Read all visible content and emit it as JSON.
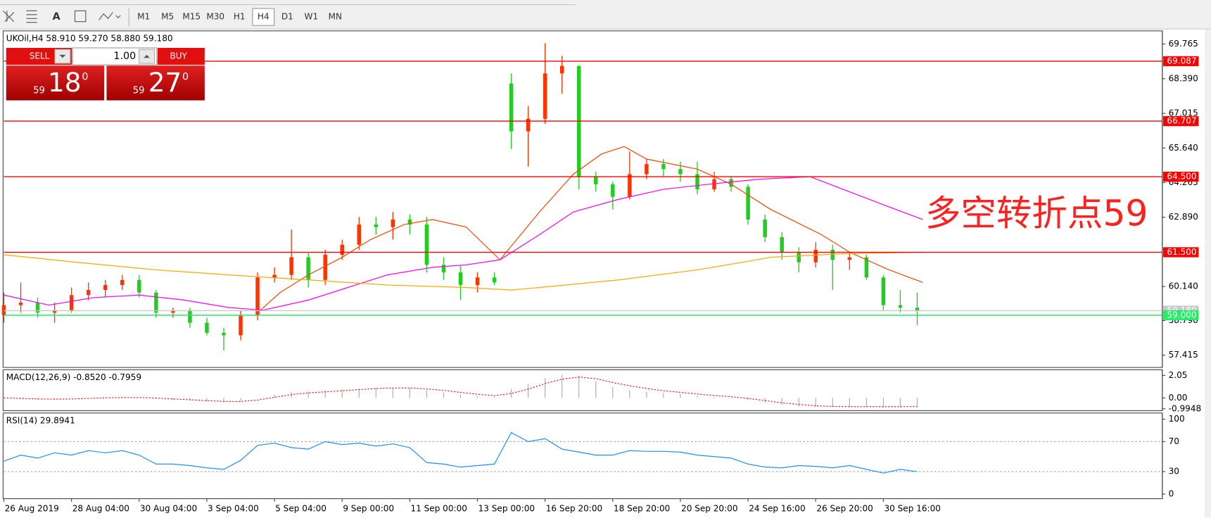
{
  "toolbar": {
    "text_tool": "A",
    "timeframes": [
      "M1",
      "M5",
      "M15",
      "M30",
      "H1",
      "H4",
      "D1",
      "W1",
      "MN"
    ],
    "active_timeframe": 5
  },
  "trade_panel": {
    "sell_label": "SELL",
    "buy_label": "BUY",
    "volume": "1.00",
    "sell": {
      "big": "59",
      "main": "18",
      "sup": "0"
    },
    "buy": {
      "big": "59",
      "main": "27",
      "sup": "0"
    }
  },
  "chart_data": [
    {
      "type": "candlestick",
      "title": "UKOil,H4  58.910 59.270 58.880 59.180",
      "x": [
        0,
        3,
        6,
        9,
        12,
        15,
        18,
        21,
        24,
        27,
        30,
        33,
        36,
        39,
        42,
        45,
        48,
        51,
        54,
        57,
        60,
        63,
        66,
        69,
        72,
        75,
        78,
        81,
        84,
        87,
        90,
        93,
        96,
        99,
        102,
        105,
        108,
        111,
        114,
        117,
        120,
        123,
        126,
        129,
        132,
        135,
        138,
        141,
        144,
        147,
        150,
        153,
        156,
        159,
        162
      ],
      "open": [
        59.0,
        59.4,
        59.5,
        59.1,
        59.2,
        59.8,
        60.0,
        60.2,
        60.4,
        59.9,
        59.1,
        59.2,
        58.7,
        58.3,
        58.2,
        59.0,
        60.5,
        60.6,
        61.3,
        60.4,
        61.4,
        61.8,
        62.6,
        62.5,
        62.8,
        62.6,
        61.0,
        60.7,
        60.2,
        60.5,
        68.2,
        66.3,
        66.8,
        68.6,
        68.9,
        64.5,
        64.2,
        63.7,
        64.6,
        65.0,
        64.8,
        64.6,
        64.0,
        64.4,
        64.1,
        62.8,
        62.1,
        61.5,
        61.1,
        61.6,
        61.2,
        61.3,
        60.5,
        59.4,
        59.3
      ],
      "high": [
        59.9,
        60.3,
        59.7,
        59.5,
        60.1,
        60.3,
        60.4,
        60.6,
        60.6,
        60.0,
        59.3,
        59.3,
        58.9,
        58.5,
        59.2,
        60.7,
        60.9,
        62.4,
        61.5,
        61.6,
        62.0,
        62.9,
        62.9,
        63.1,
        63.0,
        62.9,
        61.3,
        61.0,
        60.7,
        60.7,
        68.6,
        67.3,
        69.8,
        69.3,
        68.9,
        64.7,
        64.3,
        65.5,
        65.2,
        65.2,
        65.1,
        65.1,
        64.7,
        64.5,
        64.2,
        63.0,
        62.3,
        61.7,
        61.9,
        61.8,
        61.5,
        61.4,
        60.6,
        60.0,
        59.9
      ],
      "low": [
        58.7,
        59.1,
        58.9,
        58.7,
        59.1,
        59.6,
        59.7,
        60.0,
        59.7,
        58.9,
        58.9,
        58.5,
        58.2,
        57.6,
        58.0,
        58.8,
        60.3,
        60.4,
        60.1,
        60.2,
        61.2,
        61.6,
        62.2,
        62.0,
        62.2,
        60.7,
        60.4,
        59.6,
        59.9,
        60.2,
        65.6,
        64.9,
        66.6,
        67.8,
        64.0,
        63.9,
        63.2,
        63.6,
        64.4,
        64.5,
        64.3,
        63.8,
        63.9,
        63.9,
        62.6,
        61.9,
        61.2,
        60.7,
        60.9,
        60.0,
        60.8,
        60.4,
        59.2,
        59.1,
        58.6
      ],
      "close": [
        59.4,
        59.5,
        59.1,
        59.2,
        59.8,
        60.0,
        60.2,
        60.4,
        59.9,
        59.1,
        59.2,
        58.7,
        58.3,
        58.2,
        59.0,
        60.5,
        60.6,
        61.3,
        60.4,
        61.4,
        61.8,
        62.6,
        62.5,
        62.8,
        62.6,
        61.0,
        60.7,
        60.2,
        60.5,
        60.3,
        66.3,
        66.8,
        68.6,
        68.9,
        64.5,
        64.2,
        63.7,
        64.6,
        65.0,
        64.8,
        64.6,
        64.0,
        64.4,
        64.1,
        62.8,
        62.1,
        61.5,
        61.1,
        61.6,
        61.2,
        61.3,
        60.5,
        59.4,
        59.3,
        59.18
      ],
      "up_color": "#ff3300",
      "down_color": "#22cc22",
      "xlim": [
        0,
        205
      ],
      "ylim": [
        56.925,
        70.29
      ],
      "yticks": [
        69.765,
        {
          "value": 68.39,
          "label": "68.390"
        },
        67.015,
        {
          "value": 65.64,
          "label": "65.640"
        },
        64.265,
        {
          "value": 62.89,
          "label": "62.890"
        },
        {
          "value": 60.14,
          "label": "60.140"
        },
        {
          "value": 58.79,
          "label": "58.790"
        },
        57.415
      ],
      "xticks": [
        {
          "value": 0,
          "label": "26 Aug 2019"
        },
        {
          "value": 12,
          "label": "28 Aug 04:00"
        },
        {
          "value": 24,
          "label": "30 Aug 04:00"
        },
        {
          "value": 36,
          "label": "3 Sep 04:00"
        },
        {
          "value": 48,
          "label": "5 Sep 04:00"
        },
        {
          "value": 60,
          "label": "9 Sep 00:00"
        },
        {
          "value": 72,
          "label": "11 Sep 00:00"
        },
        {
          "value": 84,
          "label": "13 Sep 00:00"
        },
        {
          "value": 96,
          "label": "16 Sep 20:00"
        },
        {
          "value": 108,
          "label": "18 Sep 20:00"
        },
        {
          "value": 120,
          "label": "20 Sep 20:00"
        },
        {
          "value": 132,
          "label": "24 Sep 16:00"
        },
        {
          "value": 144,
          "label": "26 Sep 20:00"
        },
        {
          "value": 156,
          "label": "30 Sep 16:00"
        }
      ],
      "lines": [
        {
          "color": "#ff4500",
          "x": [
            45,
            49,
            54,
            60,
            65,
            71,
            76,
            82,
            88,
            95,
            101,
            106,
            110,
            114,
            123,
            129,
            136,
            145,
            150,
            157,
            163
          ],
          "values": [
            59.1,
            59.9,
            60.6,
            61.3,
            62.0,
            62.6,
            62.8,
            62.5,
            61.2,
            63.1,
            64.6,
            65.4,
            65.7,
            65.2,
            64.8,
            64.2,
            63.2,
            62.2,
            61.5,
            60.8,
            60.3
          ]
        },
        {
          "color": "#ff00ff",
          "x": [
            0,
            8,
            16,
            24,
            32,
            40,
            46,
            54,
            61,
            68,
            76,
            82,
            88,
            95,
            101,
            109,
            117,
            125,
            134,
            143,
            150,
            157,
            163
          ],
          "values": [
            59.8,
            59.4,
            59.7,
            59.8,
            59.6,
            59.3,
            59.2,
            59.6,
            60.1,
            60.6,
            60.9,
            61.0,
            61.2,
            62.2,
            63.1,
            63.6,
            64.0,
            64.2,
            64.4,
            64.5,
            63.9,
            63.3,
            62.8
          ]
        },
        {
          "color": "#ffa500",
          "x": [
            0,
            13,
            27,
            40,
            54,
            68,
            82,
            90,
            95,
            109,
            123,
            131,
            136,
            150,
            163
          ],
          "values": [
            61.4,
            61.1,
            60.8,
            60.6,
            60.4,
            60.2,
            60.1,
            60.0,
            60.1,
            60.4,
            60.8,
            61.1,
            61.3,
            61.45,
            61.5
          ]
        }
      ],
      "hlines": [
        {
          "value": 69.087,
          "label": "69.087",
          "color": "#ff0000"
        },
        {
          "value": 66.707,
          "label": "66.707",
          "color": "#ff0000"
        },
        {
          "value": 64.5,
          "label": "64.500",
          "color": "#ff0000"
        },
        {
          "value": 61.5,
          "label": "61.500",
          "color": "#ff0000"
        },
        {
          "value": 59.18,
          "label": "59.180",
          "color": "#c8c8c8"
        },
        {
          "value": 59,
          "label": "59.000",
          "color": "#22ee66"
        }
      ],
      "annotation": "多空转折点59",
      "annotation_color": "#ff2020"
    },
    {
      "type": "macd",
      "title": "MACD(12,26,9) -0.8520 -0.7959",
      "x": [
        0,
        3,
        6,
        9,
        12,
        15,
        18,
        21,
        24,
        27,
        30,
        33,
        36,
        39,
        42,
        45,
        48,
        51,
        54,
        57,
        60,
        63,
        66,
        69,
        72,
        75,
        78,
        81,
        84,
        87,
        90,
        93,
        96,
        99,
        102,
        105,
        108,
        111,
        114,
        117,
        120,
        123,
        126,
        129,
        132,
        135,
        138,
        141,
        144,
        147,
        150,
        153,
        156,
        159,
        162
      ],
      "values": [
        -0.05,
        -0.1,
        -0.15,
        -0.1,
        -0.05,
        0,
        0.05,
        0.05,
        0,
        -0.1,
        -0.2,
        -0.25,
        -0.35,
        -0.4,
        -0.3,
        0,
        0.3,
        0.55,
        0.6,
        0.65,
        0.75,
        0.85,
        0.95,
        0.95,
        0.9,
        0.7,
        0.5,
        0.3,
        0.15,
        0.05,
        0.8,
        1.3,
        1.8,
        2.1,
        2.0,
        1.5,
        1.0,
        0.7,
        0.55,
        0.45,
        0.35,
        0.2,
        0.1,
        0,
        -0.2,
        -0.45,
        -0.65,
        -0.8,
        -0.85,
        -0.85,
        -0.85,
        -0.85,
        -0.9,
        -0.9,
        -0.852
      ],
      "signal": [
        0,
        -0.05,
        -0.1,
        -0.12,
        -0.1,
        -0.05,
        0,
        0.03,
        0.03,
        -0.02,
        -0.1,
        -0.17,
        -0.25,
        -0.32,
        -0.33,
        -0.2,
        0.05,
        0.3,
        0.45,
        0.55,
        0.65,
        0.75,
        0.85,
        0.9,
        0.9,
        0.82,
        0.68,
        0.5,
        0.33,
        0.2,
        0.4,
        0.8,
        1.3,
        1.7,
        1.9,
        1.75,
        1.4,
        1.1,
        0.85,
        0.65,
        0.5,
        0.35,
        0.22,
        0.1,
        -0.05,
        -0.25,
        -0.45,
        -0.6,
        -0.72,
        -0.78,
        -0.8,
        -0.8,
        -0.8,
        -0.8,
        -0.7959
      ],
      "color": "#a8a8a8",
      "signal_color": "#ff0000",
      "xlim": [
        0,
        205
      ],
      "ylim": [
        -1.17,
        2.56
      ],
      "yticks": [
        2.05,
        {
          "value": 0,
          "label": "0.00"
        },
        -0.9948
      ]
    },
    {
      "type": "line",
      "title": "RSI(14) 29.8941",
      "x": [
        0,
        3,
        6,
        9,
        12,
        15,
        18,
        21,
        24,
        27,
        30,
        33,
        36,
        39,
        42,
        45,
        48,
        51,
        54,
        57,
        60,
        63,
        66,
        69,
        72,
        75,
        78,
        81,
        84,
        87,
        90,
        93,
        96,
        99,
        102,
        105,
        108,
        111,
        114,
        117,
        120,
        123,
        126,
        129,
        132,
        135,
        138,
        141,
        144,
        147,
        150,
        153,
        156,
        159,
        162
      ],
      "values": [
        44,
        52,
        48,
        55,
        52,
        58,
        55,
        58,
        52,
        40,
        40,
        38,
        35,
        33,
        45,
        65,
        68,
        62,
        60,
        70,
        66,
        68,
        64,
        67,
        62,
        42,
        40,
        36,
        38,
        40,
        82,
        70,
        74,
        60,
        56,
        52,
        52,
        58,
        57,
        57,
        56,
        52,
        50,
        48,
        40,
        36,
        35,
        38,
        37,
        35,
        38,
        33,
        28,
        33,
        29.8941
      ],
      "color": "#1e90ff",
      "xlim": [
        0,
        205
      ],
      "ylim": [
        -6.2,
        108.2
      ],
      "yticks": [
        100,
        70,
        30,
        0
      ],
      "grid_levels": [
        70,
        30
      ]
    }
  ]
}
